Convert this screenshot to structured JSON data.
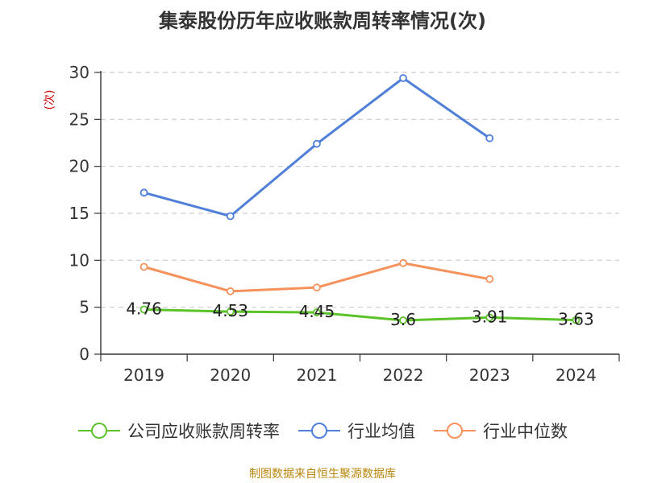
{
  "chart_data": {
    "type": "line",
    "title": "集泰股份历年应收账款周转率情况(次)",
    "ylabel": "(次)",
    "categories": [
      "2019",
      "2020",
      "2021",
      "2022",
      "2023",
      "2024"
    ],
    "ylim": [
      0,
      30
    ],
    "yticks": [
      0,
      5,
      10,
      15,
      20,
      25,
      30
    ],
    "grid": true,
    "legend_position": "bottom",
    "series": [
      {
        "name": "公司应收账款周转率",
        "values": [
          4.76,
          4.53,
          4.45,
          3.6,
          3.91,
          3.63
        ],
        "labels": [
          "4.76",
          "4.53",
          "4.45",
          "3.6",
          "3.91",
          "3.63"
        ],
        "color": "#5cc22a"
      },
      {
        "name": "行业均值",
        "values": [
          17.2,
          14.7,
          22.4,
          29.4,
          23.0,
          null
        ],
        "color": "#4f7fd9"
      },
      {
        "name": "行业中位数",
        "values": [
          9.3,
          6.7,
          7.1,
          9.7,
          8.0,
          null
        ],
        "color": "#f5925c"
      }
    ]
  },
  "source": "制图数据来自恒生聚源数据库"
}
